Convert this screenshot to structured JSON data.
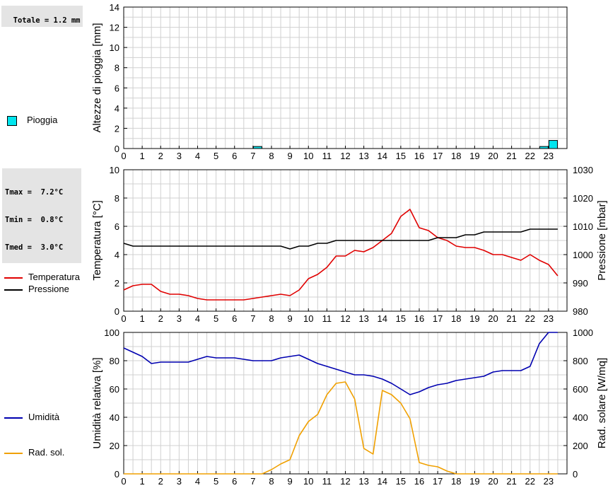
{
  "stats": {
    "rain_total": "Totale = 1.2 mm",
    "tmax": "Tmax =  7.2°C",
    "tmin": "Tmin =  0.8°C",
    "tmed": "Tmed =  3.0°C"
  },
  "legend": {
    "rain": "Pioggia",
    "temperature": "Temperatura",
    "pressure": "Pressione",
    "humidity": "Umidità",
    "radiation": "Rad. sol."
  },
  "colors": {
    "rain": "#00e5ee",
    "temperature": "#e00000",
    "pressure": "#000000",
    "humidity": "#0000b0",
    "radiation": "#f0a000",
    "grid": "#d0d0d0"
  },
  "chart_data": [
    {
      "type": "bar",
      "id": "rain",
      "ylabel": "Altezze di pioggia [mm]",
      "ylim": [
        0,
        14
      ],
      "yticks": [
        0,
        2,
        4,
        6,
        8,
        10,
        12,
        14
      ],
      "xticks": [
        0,
        1,
        2,
        3,
        4,
        5,
        6,
        7,
        8,
        9,
        10,
        11,
        12,
        13,
        14,
        15,
        16,
        17,
        18,
        19,
        20,
        21,
        22,
        23
      ],
      "grid": true,
      "series": [
        {
          "name": "Pioggia",
          "points": [
            [
              7.0,
              0.2
            ],
            [
              22.5,
              0.2
            ],
            [
              23.0,
              0.8
            ]
          ]
        }
      ]
    },
    {
      "type": "line",
      "id": "temp_press",
      "ylabel": "Temperatura [°C]",
      "ylabel_right": "Pressione [mbar]",
      "ylim": [
        0,
        10
      ],
      "ylim_right": [
        980,
        1030
      ],
      "yticks": [
        0,
        2,
        4,
        6,
        8,
        10
      ],
      "yticks_right": [
        980,
        990,
        1000,
        1010,
        1020,
        1030
      ],
      "xticks": [
        0,
        1,
        2,
        3,
        4,
        5,
        6,
        7,
        8,
        9,
        10,
        11,
        12,
        13,
        14,
        15,
        16,
        17,
        18,
        19,
        20,
        21,
        22,
        23
      ],
      "grid": true,
      "series": [
        {
          "name": "Temperatura",
          "axis": "left",
          "points": [
            [
              0,
              1.5
            ],
            [
              0.5,
              1.8
            ],
            [
              1,
              1.9
            ],
            [
              1.5,
              1.9
            ],
            [
              2,
              1.4
            ],
            [
              2.5,
              1.2
            ],
            [
              3,
              1.2
            ],
            [
              3.5,
              1.1
            ],
            [
              4,
              0.9
            ],
            [
              4.5,
              0.8
            ],
            [
              5,
              0.8
            ],
            [
              5.5,
              0.8
            ],
            [
              6,
              0.8
            ],
            [
              6.5,
              0.8
            ],
            [
              7,
              0.9
            ],
            [
              7.5,
              1.0
            ],
            [
              8,
              1.1
            ],
            [
              8.5,
              1.2
            ],
            [
              9,
              1.1
            ],
            [
              9.5,
              1.5
            ],
            [
              10,
              2.3
            ],
            [
              10.5,
              2.6
            ],
            [
              11,
              3.1
            ],
            [
              11.5,
              3.9
            ],
            [
              12,
              3.9
            ],
            [
              12.5,
              4.3
            ],
            [
              13,
              4.2
            ],
            [
              13.5,
              4.5
            ],
            [
              14,
              5.0
            ],
            [
              14.5,
              5.5
            ],
            [
              15,
              6.7
            ],
            [
              15.5,
              7.2
            ],
            [
              16,
              5.9
            ],
            [
              16.5,
              5.7
            ],
            [
              17,
              5.2
            ],
            [
              17.5,
              5.0
            ],
            [
              18,
              4.6
            ],
            [
              18.5,
              4.5
            ],
            [
              19,
              4.5
            ],
            [
              19.5,
              4.3
            ],
            [
              20,
              4.0
            ],
            [
              20.5,
              4.0
            ],
            [
              21,
              3.8
            ],
            [
              21.5,
              3.6
            ],
            [
              22,
              4.0
            ],
            [
              22.5,
              3.6
            ],
            [
              23,
              3.3
            ],
            [
              23.5,
              2.5
            ]
          ]
        },
        {
          "name": "Pressione",
          "axis": "right",
          "points": [
            [
              0,
              1004
            ],
            [
              0.5,
              1003
            ],
            [
              1,
              1003
            ],
            [
              2,
              1003
            ],
            [
              3,
              1003
            ],
            [
              4,
              1003
            ],
            [
              5,
              1003
            ],
            [
              6,
              1003
            ],
            [
              7,
              1003
            ],
            [
              8,
              1003
            ],
            [
              8.5,
              1003
            ],
            [
              9,
              1002
            ],
            [
              9.5,
              1003
            ],
            [
              10,
              1003
            ],
            [
              10.5,
              1004
            ],
            [
              11,
              1004
            ],
            [
              11.5,
              1005
            ],
            [
              12,
              1005
            ],
            [
              13,
              1005
            ],
            [
              14,
              1005
            ],
            [
              15,
              1005
            ],
            [
              16,
              1005
            ],
            [
              16.5,
              1005
            ],
            [
              17,
              1006
            ],
            [
              17.5,
              1006
            ],
            [
              18,
              1006
            ],
            [
              18.5,
              1007
            ],
            [
              19,
              1007
            ],
            [
              19.5,
              1008
            ],
            [
              20,
              1008
            ],
            [
              21,
              1008
            ],
            [
              21.5,
              1008
            ],
            [
              22,
              1009
            ],
            [
              23,
              1009
            ],
            [
              23.5,
              1009
            ]
          ]
        }
      ]
    },
    {
      "type": "line",
      "id": "hum_rad",
      "ylabel": "Umidità relativa [%]",
      "ylabel_right": "Rad. solare [W/mq]",
      "ylim": [
        0,
        100
      ],
      "ylim_right": [
        0,
        1000
      ],
      "yticks": [
        0,
        20,
        40,
        60,
        80,
        100
      ],
      "yticks_right": [
        0,
        200,
        400,
        600,
        800,
        1000
      ],
      "xticks": [
        0,
        1,
        2,
        3,
        4,
        5,
        6,
        7,
        8,
        9,
        10,
        11,
        12,
        13,
        14,
        15,
        16,
        17,
        18,
        19,
        20,
        21,
        22,
        23
      ],
      "grid": true,
      "series": [
        {
          "name": "Umidità",
          "axis": "left",
          "points": [
            [
              0,
              89
            ],
            [
              0.5,
              86
            ],
            [
              1,
              83
            ],
            [
              1.5,
              78
            ],
            [
              2,
              79
            ],
            [
              2.5,
              79
            ],
            [
              3,
              79
            ],
            [
              3.5,
              79
            ],
            [
              4,
              81
            ],
            [
              4.5,
              83
            ],
            [
              5,
              82
            ],
            [
              5.5,
              82
            ],
            [
              6,
              82
            ],
            [
              6.5,
              81
            ],
            [
              7,
              80
            ],
            [
              7.5,
              80
            ],
            [
              8,
              80
            ],
            [
              8.5,
              82
            ],
            [
              9,
              83
            ],
            [
              9.5,
              84
            ],
            [
              10,
              81
            ],
            [
              10.5,
              78
            ],
            [
              11,
              76
            ],
            [
              11.5,
              74
            ],
            [
              12,
              72
            ],
            [
              12.5,
              70
            ],
            [
              13,
              70
            ],
            [
              13.5,
              69
            ],
            [
              14,
              67
            ],
            [
              14.5,
              64
            ],
            [
              15,
              60
            ],
            [
              15.5,
              56
            ],
            [
              16,
              58
            ],
            [
              16.5,
              61
            ],
            [
              17,
              63
            ],
            [
              17.5,
              64
            ],
            [
              18,
              66
            ],
            [
              18.5,
              67
            ],
            [
              19,
              68
            ],
            [
              19.5,
              69
            ],
            [
              20,
              72
            ],
            [
              20.5,
              73
            ],
            [
              21,
              73
            ],
            [
              21.5,
              73
            ],
            [
              22,
              76
            ],
            [
              22.5,
              92
            ],
            [
              23,
              100
            ],
            [
              23.5,
              100
            ]
          ]
        },
        {
          "name": "Rad. sol.",
          "axis": "right",
          "points": [
            [
              0,
              0
            ],
            [
              7,
              0
            ],
            [
              7.5,
              0
            ],
            [
              8,
              30
            ],
            [
              8.5,
              70
            ],
            [
              9,
              100
            ],
            [
              9.5,
              270
            ],
            [
              10,
              370
            ],
            [
              10.5,
              420
            ],
            [
              11,
              560
            ],
            [
              11.5,
              640
            ],
            [
              12,
              650
            ],
            [
              12.5,
              530
            ],
            [
              13,
              180
            ],
            [
              13.5,
              140
            ],
            [
              14,
              590
            ],
            [
              14.5,
              560
            ],
            [
              15,
              500
            ],
            [
              15.5,
              390
            ],
            [
              16,
              80
            ],
            [
              16.5,
              60
            ],
            [
              17,
              50
            ],
            [
              17.5,
              20
            ],
            [
              18,
              0
            ],
            [
              19,
              0
            ],
            [
              20,
              0
            ],
            [
              21,
              0
            ],
            [
              22,
              0
            ],
            [
              23,
              0
            ],
            [
              23.5,
              0
            ]
          ]
        }
      ]
    }
  ]
}
